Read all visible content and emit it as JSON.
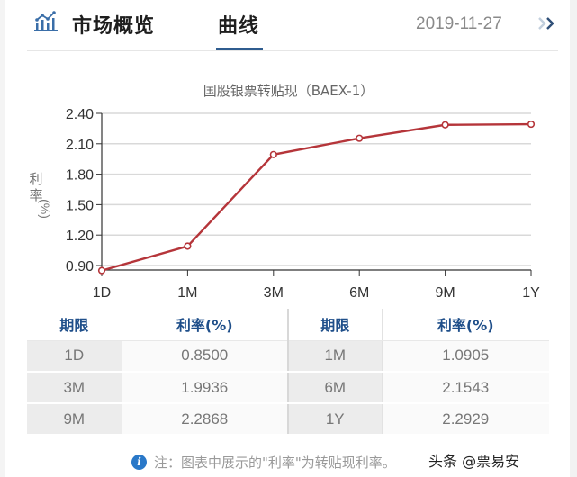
{
  "header": {
    "icon": "line-bar-chart-icon",
    "title": "市场概览",
    "tab": "曲线",
    "date": "2019-11-27",
    "next_icon": "double-chevron-right-icon"
  },
  "colors": {
    "accent": "#2f5c8f",
    "line": "#b5353a",
    "header_text": "#1f4f8a",
    "info": "#2a78c8"
  },
  "chart_data": {
    "type": "line",
    "title": "国股银票转贴现（BAEX-1）",
    "xlabel": "",
    "ylabel": "利率 (%)",
    "categories": [
      "1D",
      "1M",
      "3M",
      "6M",
      "9M",
      "1Y"
    ],
    "series": [
      {
        "name": "利率(%)",
        "values": [
          0.85,
          1.0905,
          1.9936,
          2.1543,
          2.2868,
          2.2929
        ]
      }
    ],
    "yticks": [
      "0.90",
      "1.20",
      "1.50",
      "1.80",
      "2.10",
      "2.40"
    ],
    "ylim": [
      0.85,
      2.4
    ],
    "grid": true,
    "legend": "none"
  },
  "table": {
    "headers": [
      "期限",
      "利率(%)",
      "期限",
      "利率(%)"
    ],
    "rows": [
      [
        "1D",
        "0.8500",
        "1M",
        "1.0905"
      ],
      [
        "3M",
        "1.9936",
        "6M",
        "2.1543"
      ],
      [
        "9M",
        "2.2868",
        "1Y",
        "2.2929"
      ]
    ]
  },
  "note": {
    "icon": "info-icon",
    "text": "注：图表中展示的\"利率\"为转贴现利率。"
  },
  "watermark": "头条 @票易安"
}
